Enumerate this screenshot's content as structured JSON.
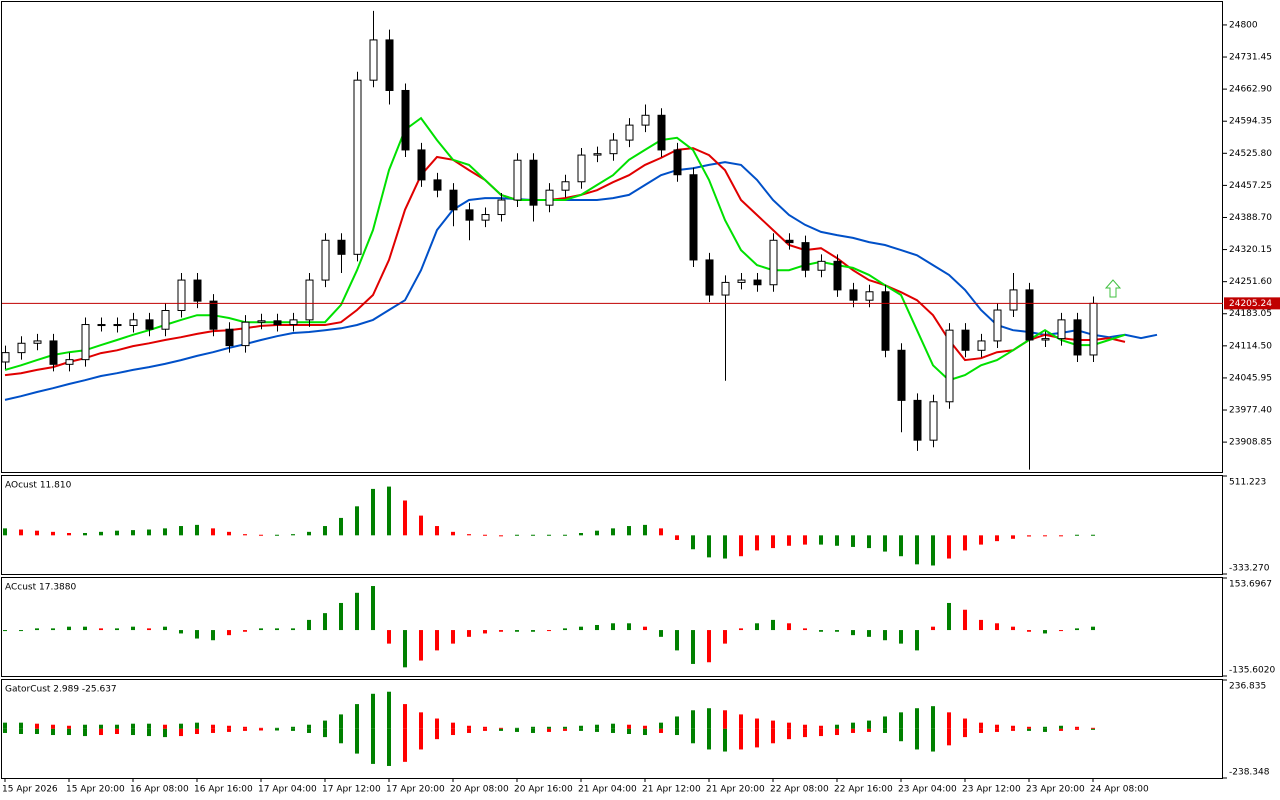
{
  "chart_data": [
    {
      "type": "candlestick",
      "categories": [
        "15 Apr 2026",
        null,
        null,
        null,
        "15 Apr 20:00",
        null,
        null,
        null,
        "16 Apr 08:00",
        null,
        null,
        null,
        "16 Apr 16:00",
        null,
        null,
        null,
        "17 Apr 04:00",
        null,
        null,
        null,
        "17 Apr 12:00",
        null,
        null,
        null,
        "17 Apr 20:00",
        null,
        null,
        null,
        "20 Apr 08:00",
        null,
        null,
        null,
        "20 Apr 16:00",
        null,
        null,
        null,
        "21 Apr 04:00",
        null,
        null,
        null,
        "21 Apr 12:00",
        null,
        null,
        null,
        "21 Apr 20:00",
        null,
        null,
        null,
        "22 Apr 08:00",
        null,
        null,
        null,
        "22 Apr 16:00",
        null,
        null,
        null,
        "23 Apr 04:00",
        null,
        null,
        null,
        "23 Apr 12:00",
        null,
        null,
        null,
        "23 Apr 20:00",
        null,
        null,
        null,
        "24 Apr 08:00",
        null,
        null,
        null,
        null
      ],
      "open": [
        24080,
        24100,
        24120,
        24125,
        24075,
        24085,
        24160,
        24160,
        24158,
        24170,
        24150,
        24190,
        24255,
        24210,
        24150,
        24115,
        24165,
        24168,
        24160,
        24170,
        24255,
        24340,
        24310,
        24682,
        24768,
        24660,
        24533,
        24469,
        24447,
        24405,
        24383,
        24395,
        24426,
        24511,
        24415,
        24447,
        24465,
        24522,
        24525,
        24554,
        24586,
        24607,
        24533,
        24480,
        24298,
        24223,
        24250,
        24255,
        24245,
        24340,
        24335,
        24276,
        24295,
        24234,
        24212,
        24230,
        24105,
        23998,
        23913,
        23995,
        24148,
        24105,
        24125,
        24191,
        24234,
        24127,
        24130,
        24170,
        24095,
        null,
        null,
        null,
        null
      ],
      "high": [
        24115,
        24135,
        24140,
        24140,
        24100,
        24175,
        24175,
        24175,
        24185,
        24185,
        24205,
        24270,
        24270,
        24225,
        24165,
        24180,
        24183,
        24183,
        24185,
        24270,
        24355,
        24355,
        24700,
        24830,
        24790,
        24675,
        24548,
        24484,
        24462,
        24420,
        24410,
        24441,
        24526,
        24526,
        24462,
        24480,
        24537,
        24540,
        24569,
        24601,
        24630,
        24622,
        24548,
        24495,
        24313,
        24265,
        24270,
        24270,
        24355,
        24355,
        24350,
        24310,
        24310,
        24249,
        24245,
        24245,
        24120,
        24013,
        24010,
        24163,
        24163,
        24140,
        24206,
        24270,
        24249,
        24145,
        24185,
        24185,
        24220,
        null,
        null,
        null,
        null
      ],
      "low": [
        24065,
        24085,
        24105,
        24060,
        24060,
        24070,
        24145,
        24143,
        24143,
        24135,
        24135,
        24175,
        24195,
        24135,
        24100,
        24100,
        24150,
        24145,
        24145,
        24155,
        24240,
        24270,
        24295,
        24667,
        24630,
        24518,
        24454,
        24432,
        24370,
        24340,
        24368,
        24380,
        24411,
        24380,
        24400,
        24432,
        24450,
        24507,
        24510,
        24539,
        24571,
        24518,
        24465,
        24283,
        24208,
        24040,
        24235,
        24230,
        24230,
        24320,
        24261,
        24261,
        24219,
        24197,
        24197,
        24090,
        23930,
        23890,
        23898,
        23980,
        24090,
        24090,
        24110,
        24176,
        23850,
        24112,
        24115,
        24080,
        24080,
        null,
        null,
        null,
        null
      ],
      "close": [
        24100,
        24120,
        24125,
        24075,
        24085,
        24160,
        24160,
        24158,
        24170,
        24150,
        24190,
        24255,
        24210,
        24150,
        24115,
        24165,
        24168,
        24160,
        24170,
        24255,
        24340,
        24310,
        24682,
        24768,
        24660,
        24533,
        24469,
        24447,
        24405,
        24383,
        24395,
        24426,
        24511,
        24415,
        24447,
        24465,
        24522,
        24525,
        24554,
        24586,
        24607,
        24533,
        24480,
        24298,
        24223,
        24250,
        24255,
        24245,
        24340,
        24335,
        24276,
        24295,
        24234,
        24212,
        24230,
        24105,
        23998,
        23913,
        23995,
        24148,
        24105,
        24125,
        24191,
        24234,
        24127,
        24130,
        24170,
        24095,
        24205.24,
        null,
        null,
        null,
        null
      ],
      "series": [
        {
          "color": "#0050c8",
          "values": [
            23999,
            24007,
            24016,
            24024,
            24033,
            24041,
            24050,
            24056,
            24063,
            24069,
            24076,
            24084,
            24093,
            24101,
            24110,
            24118,
            24127,
            24135,
            24142,
            24144,
            24148,
            24152,
            24159,
            24170,
            24191,
            24212,
            24276,
            24362,
            24405,
            24426,
            24430,
            24430,
            24428,
            24426,
            24426,
            24426,
            24426,
            24426,
            24430,
            24437,
            24458,
            24479,
            24490,
            24494,
            24501,
            24507,
            24501,
            24469,
            24426,
            24394,
            24373,
            24358,
            24351,
            24345,
            24336,
            24330,
            24319,
            24308,
            24287,
            24266,
            24234,
            24191,
            24159,
            24148,
            24144,
            24138,
            24142,
            24148,
            24138,
            24133,
            24138,
            24131,
            24138
          ]
        },
        {
          "color": "#e00000",
          "values": [
            24052,
            24056,
            24063,
            24069,
            24080,
            24088,
            24099,
            24105,
            24114,
            24120,
            24127,
            24133,
            24140,
            24146,
            24148,
            24152,
            24157,
            24159,
            24159,
            24159,
            24159,
            24165,
            24191,
            24223,
            24298,
            24405,
            24479,
            24518,
            24512,
            24490,
            24469,
            24437,
            24426,
            24426,
            24426,
            24430,
            24437,
            24447,
            24464,
            24479,
            24501,
            24516,
            24533,
            24537,
            24522,
            24490,
            24426,
            24394,
            24362,
            24330,
            24319,
            24323,
            24302,
            24276,
            24255,
            24244,
            24229,
            24212,
            24180,
            24127,
            24084,
            24088,
            24101,
            24105,
            24127,
            24138,
            24131,
            24127,
            24127,
            24131,
            24123,
            null,
            null
          ]
        },
        {
          "color": "#00e000",
          "values": [
            24063,
            24073,
            24084,
            24095,
            24101,
            24105,
            24116,
            24127,
            24138,
            24148,
            24159,
            24170,
            24180,
            24180,
            24174,
            24165,
            24165,
            24165,
            24165,
            24165,
            24165,
            24202,
            24276,
            24362,
            24490,
            24576,
            24601,
            24554,
            24512,
            24501,
            24469,
            24437,
            24426,
            24426,
            24426,
            24426,
            24437,
            24458,
            24479,
            24512,
            24533,
            24554,
            24559,
            24533,
            24469,
            24383,
            24319,
            24287,
            24276,
            24276,
            24287,
            24294,
            24287,
            24281,
            24266,
            24244,
            24223,
            24148,
            24073,
            24041,
            24052,
            24073,
            24084,
            24105,
            24127,
            24148,
            24127,
            24116,
            24116,
            24127,
            24138,
            null,
            null
          ]
        }
      ],
      "up_color": "#ffffff",
      "down_color": "#000000",
      "ylim": [
        23845,
        24849
      ],
      "yticks": [
        24800,
        24731.45,
        {
          "value": 24662.9,
          "label": "24662.90"
        },
        24594.35,
        {
          "value": 24525.8,
          "label": "24525.80"
        },
        24457.25,
        {
          "value": 24388.7,
          "label": "24388.70"
        },
        24320.15,
        {
          "value": 24251.6,
          "label": "24251.60"
        },
        24183.05,
        {
          "value": 24114.5,
          "label": "24114.50"
        },
        24045.95,
        {
          "value": 23977.4,
          "label": "23977.40"
        },
        23908.85
      ],
      "last_price": 24205.24,
      "last_price_color": "#c00000"
    },
    {
      "type": "histogram",
      "title": "AOcust 11.810",
      "up_color": "#008000",
      "down_color": "#ff0000",
      "values": [
        60,
        50,
        40,
        30,
        20,
        20,
        30,
        40,
        45,
        50,
        60,
        80,
        90,
        60,
        30,
        10,
        5,
        5,
        10,
        30,
        80,
        150,
        250,
        400,
        420,
        300,
        170,
        80,
        30,
        10,
        5,
        0,
        5,
        5,
        5,
        5,
        20,
        40,
        60,
        80,
        90,
        60,
        -40,
        -120,
        -190,
        -200,
        -180,
        -130,
        -110,
        -90,
        -80,
        -80,
        -90,
        -100,
        -110,
        -140,
        -180,
        -250,
        -260,
        -200,
        -130,
        -80,
        -50,
        -30,
        -10,
        -5,
        0,
        5,
        5
      ],
      "ylim": [
        -333.27,
        511.223
      ],
      "yticks": [
        511.223,
        {
          "value": -333.27,
          "label": "-333.270"
        }
      ]
    },
    {
      "type": "histogram",
      "title": "ACcust 17.3880",
      "up_color": "#008000",
      "down_color": "#ff0000",
      "values": [
        0,
        0,
        5,
        5,
        10,
        10,
        5,
        5,
        10,
        5,
        10,
        -10,
        -25,
        -30,
        -15,
        -5,
        5,
        5,
        5,
        30,
        50,
        80,
        110,
        130,
        -40,
        -110,
        -90,
        -60,
        -40,
        -20,
        -10,
        -5,
        -5,
        -5,
        0,
        5,
        10,
        15,
        20,
        20,
        10,
        -20,
        -60,
        -100,
        -95,
        -40,
        5,
        20,
        30,
        20,
        5,
        -5,
        -5,
        -15,
        -20,
        -30,
        -40,
        -60,
        10,
        80,
        60,
        30,
        20,
        10,
        -5,
        -10,
        0,
        5,
        10
      ],
      "ylim": [
        -135.602,
        153.6967
      ],
      "yticks": [
        153.6967,
        {
          "value": -135.602,
          "label": "-135.6020"
        }
      ]
    },
    {
      "type": "histogram",
      "title": "GatorCust 2.989 -25.637",
      "up_color": "#008000",
      "down_color": "#ff0000",
      "series": [
        {
          "values": [
            30,
            30,
            25,
            20,
            15,
            20,
            20,
            20,
            25,
            25,
            20,
            25,
            30,
            20,
            15,
            10,
            5,
            5,
            10,
            20,
            40,
            70,
            120,
            170,
            180,
            120,
            80,
            50,
            30,
            15,
            10,
            5,
            5,
            10,
            10,
            10,
            15,
            20,
            25,
            20,
            15,
            30,
            60,
            90,
            100,
            90,
            70,
            50,
            40,
            30,
            20,
            15,
            20,
            30,
            40,
            60,
            80,
            100,
            110,
            80,
            50,
            30,
            20,
            15,
            10,
            10,
            15,
            10,
            5
          ]
        },
        {
          "values": [
            -20,
            -25,
            -25,
            -30,
            -30,
            -35,
            -30,
            -25,
            -30,
            -35,
            -40,
            -35,
            -25,
            -20,
            -15,
            -10,
            -8,
            -8,
            -10,
            -20,
            -40,
            -70,
            -120,
            -170,
            -180,
            -160,
            -100,
            -50,
            -30,
            -20,
            -10,
            -10,
            -15,
            -20,
            -15,
            -10,
            -10,
            -15,
            -20,
            -25,
            -30,
            -20,
            -30,
            -70,
            -100,
            -110,
            -100,
            -90,
            -70,
            -50,
            -40,
            -35,
            -30,
            -20,
            -15,
            -20,
            -60,
            -100,
            -110,
            -80,
            -40,
            -20,
            -15,
            -10,
            -10,
            -15,
            -10,
            -5,
            -5
          ]
        }
      ],
      "ylim": [
        -238.348,
        236.835
      ],
      "yticks": [
        236.835,
        -238.348
      ]
    }
  ]
}
